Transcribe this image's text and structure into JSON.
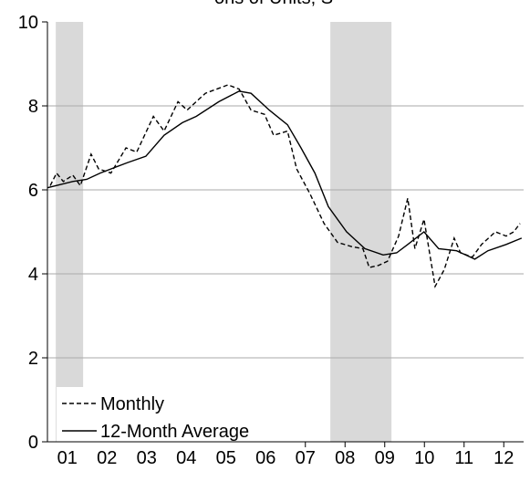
{
  "chart_data": {
    "type": "line",
    "title": "ons of Units, S",
    "xlim": [
      1,
      13
    ],
    "xticks": [
      {
        "value": 1.5,
        "label": "01"
      },
      {
        "value": 2.5,
        "label": "02"
      },
      {
        "value": 3.5,
        "label": "03"
      },
      {
        "value": 4.5,
        "label": "04"
      },
      {
        "value": 5.5,
        "label": "05"
      },
      {
        "value": 6.5,
        "label": "06"
      },
      {
        "value": 7.5,
        "label": "07"
      },
      {
        "value": 8.5,
        "label": "08"
      },
      {
        "value": 9.5,
        "label": "09"
      },
      {
        "value": 10.5,
        "label": "10"
      },
      {
        "value": 11.5,
        "label": "11"
      },
      {
        "value": 12.5,
        "label": "12"
      }
    ],
    "ylim": [
      0,
      10
    ],
    "yticks": [
      0,
      2,
      4,
      6,
      8,
      10
    ],
    "grid": true,
    "shading": [
      [
        1.21,
        1.9
      ],
      [
        8.13,
        9.67
      ]
    ],
    "shading_color": "#d9d9d9",
    "legend": "lower left",
    "series": [
      {
        "name": "Monthly",
        "color": "#000000",
        "line_style": "dashed",
        "x": [
          1.07,
          1.23,
          1.4,
          1.64,
          1.83,
          2.1,
          2.29,
          2.6,
          2.98,
          3.25,
          3.67,
          3.94,
          4.29,
          4.52,
          4.98,
          5.55,
          5.83,
          6.13,
          6.47,
          6.7,
          7.05,
          7.28,
          7.62,
          7.97,
          8.31,
          8.66,
          8.95,
          9.11,
          9.34,
          9.57,
          9.85,
          10.08,
          10.26,
          10.49,
          10.77,
          11.0,
          11.25,
          11.41,
          11.71,
          11.94,
          12.29,
          12.56,
          12.75,
          12.91
        ],
        "values": [
          6.1,
          6.4,
          6.2,
          6.35,
          6.1,
          6.85,
          6.5,
          6.4,
          7.0,
          6.9,
          7.75,
          7.4,
          8.1,
          7.9,
          8.3,
          8.5,
          8.4,
          7.9,
          7.8,
          7.3,
          7.4,
          6.5,
          5.9,
          5.2,
          4.75,
          4.65,
          4.6,
          4.15,
          4.2,
          4.3,
          4.9,
          5.8,
          4.6,
          5.3,
          3.7,
          4.1,
          4.85,
          4.5,
          4.4,
          4.7,
          5.0,
          4.9,
          5.0,
          5.2
        ]
      },
      {
        "name": "12-Month Average",
        "color": "#000000",
        "line_style": "solid",
        "x": [
          1.0,
          1.64,
          1.99,
          2.33,
          3.02,
          3.48,
          3.94,
          4.4,
          4.75,
          5.32,
          5.83,
          6.13,
          6.59,
          7.05,
          7.39,
          7.74,
          8.08,
          8.54,
          9.0,
          9.46,
          9.8,
          10.08,
          10.49,
          10.86,
          11.31,
          11.77,
          12.1,
          12.56,
          12.95
        ],
        "values": [
          6.05,
          6.2,
          6.25,
          6.4,
          6.65,
          6.8,
          7.3,
          7.6,
          7.75,
          8.1,
          8.35,
          8.3,
          7.9,
          7.55,
          7.0,
          6.4,
          5.6,
          5.0,
          4.6,
          4.45,
          4.5,
          4.7,
          5.0,
          4.6,
          4.55,
          4.35,
          4.55,
          4.7,
          4.85
        ]
      }
    ]
  }
}
